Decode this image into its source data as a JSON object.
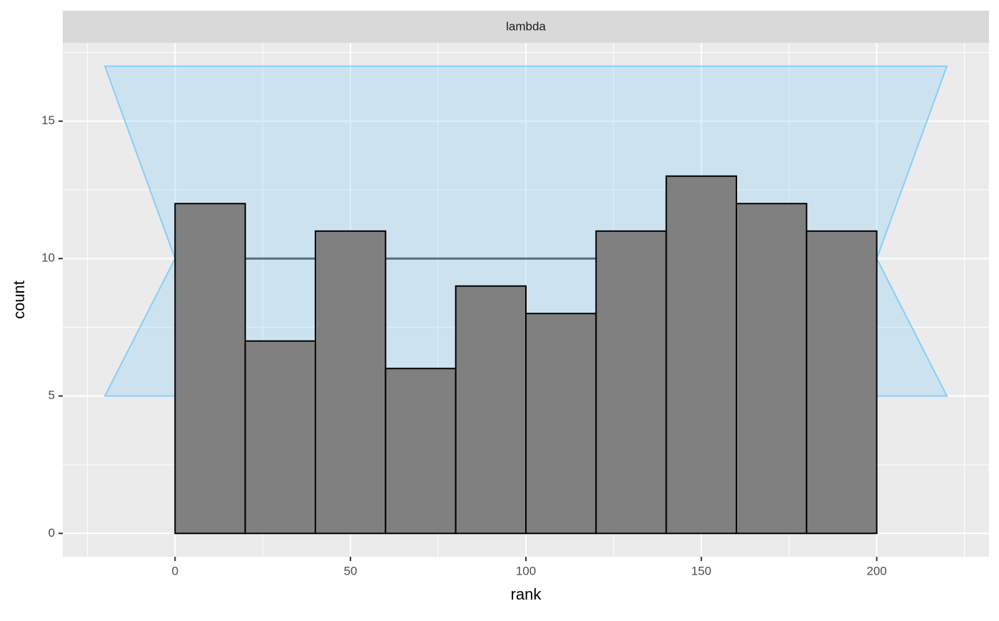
{
  "chart_data": {
    "type": "histogram",
    "strip_label": "lambda",
    "xlabel": "rank",
    "ylabel": "count",
    "bins": [
      0,
      20,
      40,
      60,
      80,
      100,
      120,
      140,
      160,
      180,
      200
    ],
    "values": [
      12,
      7,
      11,
      6,
      9,
      8,
      11,
      13,
      12,
      11
    ],
    "color": "#808080",
    "edge_color": "#000000",
    "band": {
      "x": [
        -20,
        0,
        -20,
        220,
        200,
        220
      ],
      "y": [
        5,
        10,
        17,
        17,
        10,
        5
      ],
      "color": "#87cefa"
    },
    "mean_line": 10,
    "mean_line_color": "#5a6e7b",
    "xlim": [
      -32,
      232
    ],
    "ylim": [
      -0.85,
      17.85
    ],
    "xticks": [
      0,
      50,
      100,
      150,
      200
    ],
    "yticks": [
      0,
      5,
      10,
      15
    ],
    "grid": true
  }
}
